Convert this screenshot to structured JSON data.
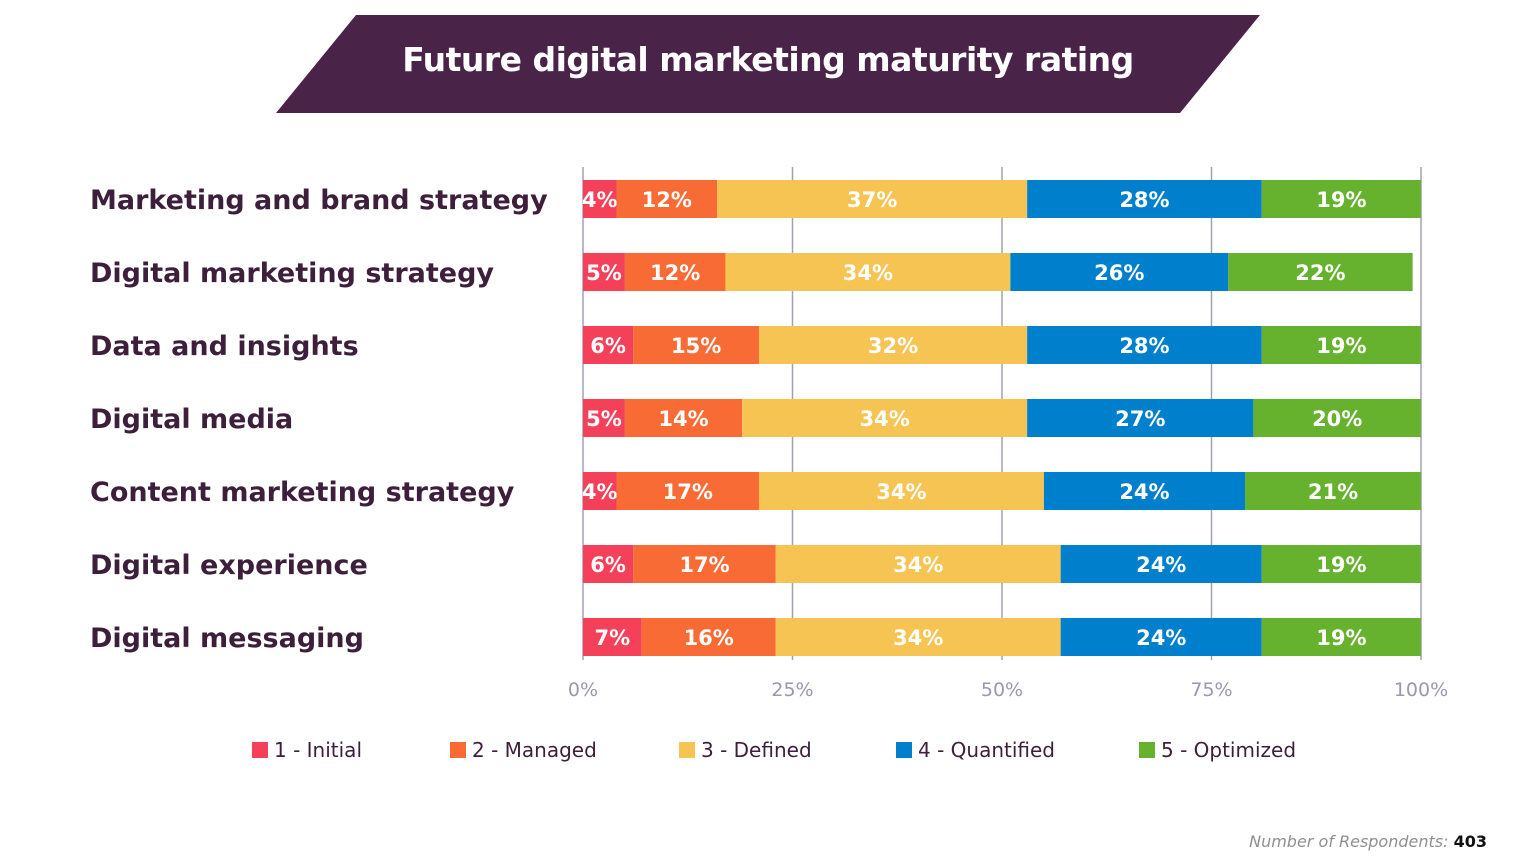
{
  "chart_data": {
    "type": "bar",
    "orientation": "horizontal",
    "stacked": true,
    "title": "Future digital marketing maturity rating",
    "categories": [
      "Marketing and brand strategy",
      "Digital marketing strategy",
      "Data and insights",
      "Digital media",
      "Content marketing strategy",
      "Digital experience",
      "Digital messaging"
    ],
    "series": [
      {
        "name": "1 - Initial",
        "color": "#F5405A",
        "values": [
          4,
          5,
          6,
          5,
          4,
          6,
          7
        ]
      },
      {
        "name": "2 - Managed",
        "color": "#F96B35",
        "values": [
          12,
          12,
          15,
          14,
          17,
          17,
          16
        ]
      },
      {
        "name": "3 - Defined",
        "color": "#F6C453",
        "values": [
          37,
          34,
          32,
          34,
          34,
          34,
          34
        ]
      },
      {
        "name": "4 - Quantified",
        "color": "#0080CC",
        "values": [
          28,
          26,
          28,
          27,
          24,
          24,
          24
        ]
      },
      {
        "name": "5 - Optimized",
        "color": "#66B22E",
        "values": [
          19,
          22,
          19,
          20,
          21,
          19,
          19
        ]
      }
    ],
    "xlim": [
      0,
      100
    ],
    "xticks": [
      "0%",
      "25%",
      "50%",
      "75%",
      "100%"
    ],
    "grid": true,
    "legend_position": "bottom",
    "title_background": "#4A2349"
  },
  "footer": {
    "label": "Number of Respondents:",
    "value": "403"
  }
}
